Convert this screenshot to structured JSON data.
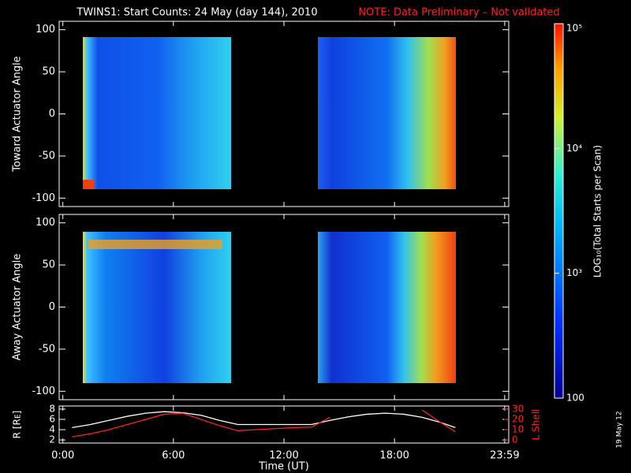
{
  "header": {
    "title": "TWINS1: Start Counts: 24 May (day 144), 2010",
    "note": "NOTE: Data Preliminary – Not validated",
    "stamp": "19 May 12"
  },
  "chart_data": [
    {
      "type": "heatmap",
      "ylabel": "Toward Actuator Angle",
      "ylim": [
        -110,
        110
      ],
      "yticks": [
        -100,
        -50,
        0,
        50,
        100
      ]
    },
    {
      "type": "heatmap",
      "ylabel": "Away Actuator Angle",
      "ylim": [
        -110,
        110
      ],
      "yticks": [
        -100,
        -50,
        0,
        50,
        100
      ]
    },
    {
      "type": "line",
      "xlabel": "Time (UT)",
      "xlim": [
        -0.2,
        24.2
      ],
      "xticks": [
        {
          "value": 0,
          "label": "0:00"
        },
        {
          "value": 6,
          "label": "6:00"
        },
        {
          "value": 12,
          "label": "12:00"
        },
        {
          "value": 18,
          "label": "18:00"
        },
        {
          "value": 23.98,
          "label": "23:59"
        }
      ],
      "ylabel": "R [Rᴇ]",
      "ylim": [
        1.4,
        8.6
      ],
      "yticks": [
        2,
        4,
        6,
        8
      ],
      "y2label": "L Shell",
      "y2lim": [
        -3,
        33
      ],
      "y2ticks": [
        0,
        10,
        20,
        30
      ],
      "x": [
        0.5,
        1.5,
        2.5,
        3.5,
        4.5,
        5.5,
        6.5,
        7.5,
        8.5,
        9.5,
        10.5,
        11.5,
        12.5,
        13.5,
        14.5,
        15.5,
        16.5,
        17.5,
        18.5,
        19.5,
        20.5,
        21.3
      ],
      "series": [
        {
          "name": "R",
          "color": "#ffffff",
          "values": [
            4.4,
            5.0,
            5.8,
            6.6,
            7.2,
            7.5,
            7.3,
            6.8,
            5.8,
            5.0,
            5.0,
            5.0,
            5.0,
            5.0,
            5.8,
            6.5,
            7.0,
            7.2,
            7.0,
            6.4,
            5.4,
            4.4
          ]
        },
        {
          "name": "L",
          "color": "#ff2020",
          "axis": "y2",
          "values": [
            3,
            6,
            10,
            15,
            20,
            25,
            26,
            20,
            14,
            9,
            10,
            11,
            12,
            12.5,
            22,
            null,
            null,
            null,
            null,
            29,
            17,
            8
          ]
        }
      ]
    }
  ],
  "colorbar": {
    "label": "LOG₁₀(Total Starts per Scan)",
    "lim": [
      100,
      100000
    ],
    "log": true,
    "ticks": [
      100,
      {
        "value": 1000,
        "label": "10³"
      },
      {
        "value": 10000,
        "label": "10⁴"
      },
      {
        "value": 100000,
        "label": "10⁵"
      }
    ]
  }
}
